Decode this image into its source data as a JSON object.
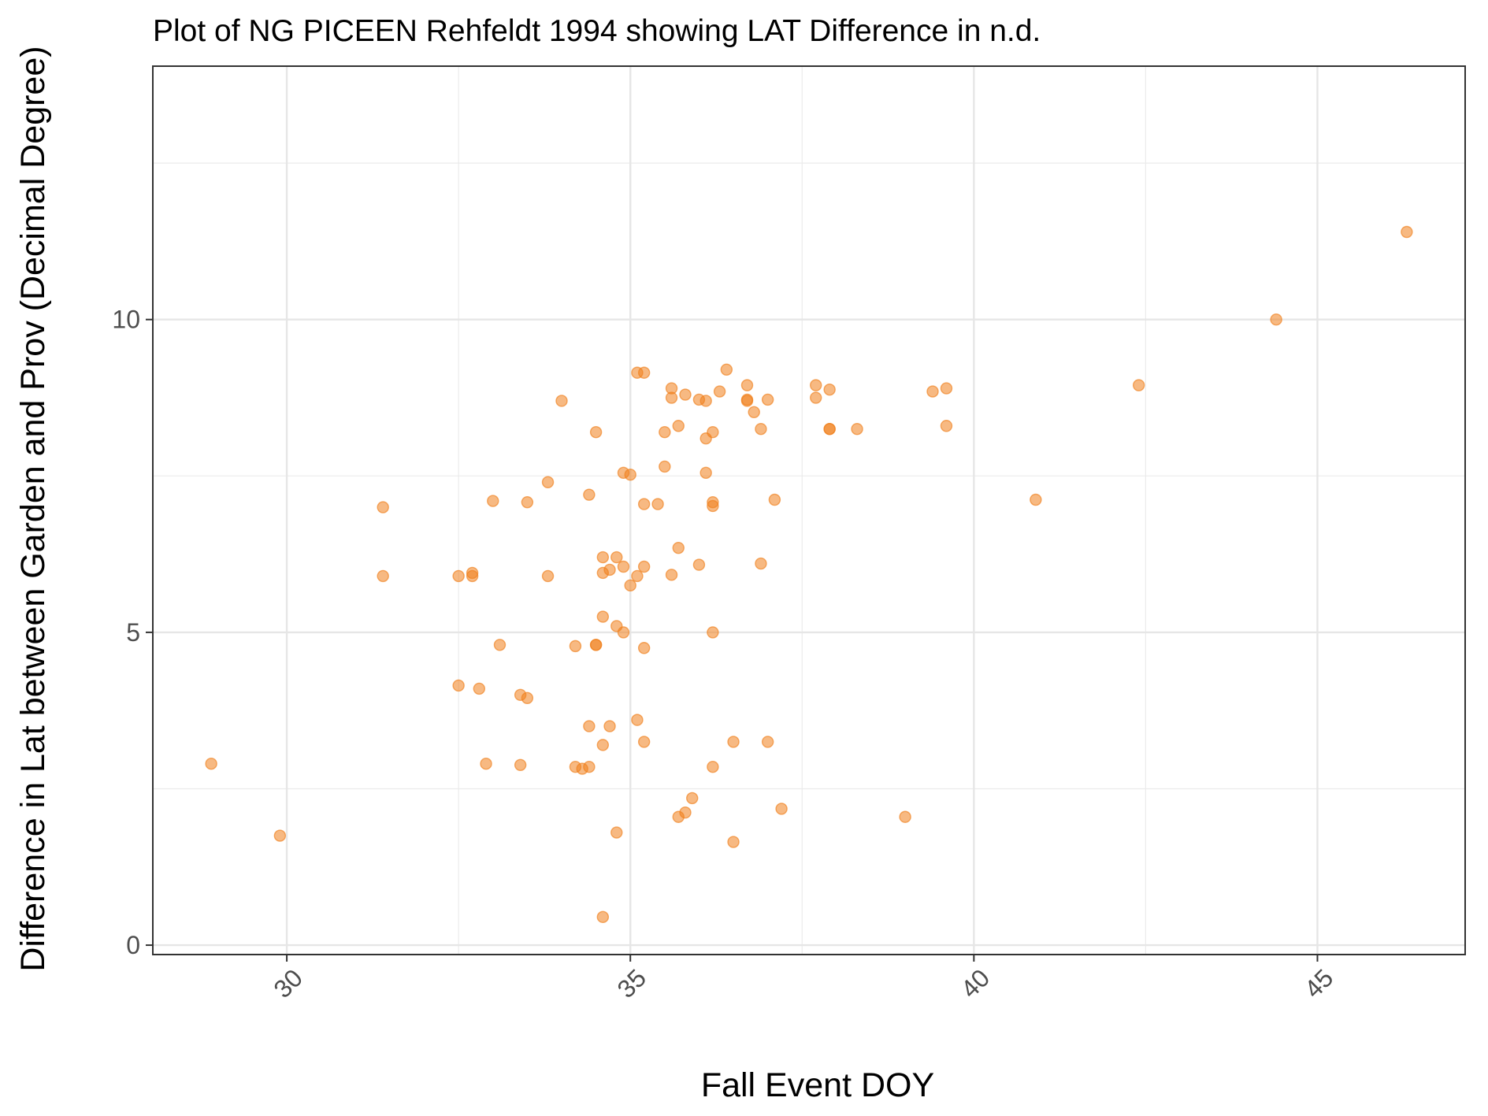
{
  "chart_data": {
    "type": "scatter",
    "title": "Plot of NG PICEEN Rehfeldt 1994 showing LAT Difference in n.d.",
    "xlabel": "Fall Event DOY",
    "ylabel": "Difference in Lat between Garden and Prov (Decimal Degree)",
    "xlim": [
      28.05,
      47.15
    ],
    "ylim": [
      -0.15,
      14.05
    ],
    "x_ticks": [
      30,
      35,
      40,
      45
    ],
    "x_tick_labels": [
      "30",
      "35",
      "40",
      "45"
    ],
    "y_ticks": [
      0,
      5,
      10
    ],
    "y_tick_labels": [
      "0",
      "5",
      "10"
    ],
    "x_minor_gridlines": [
      32.5,
      37.5,
      42.5
    ],
    "y_minor_gridlines": [
      2.5,
      7.5,
      12.5
    ],
    "grid": true,
    "legend": "none",
    "point_color": "#f07f1b",
    "point_opacity": 0.55,
    "x": [
      28.9,
      29.9,
      31.4,
      31.4,
      32.5,
      32.5,
      32.7,
      32.7,
      32.8,
      32.9,
      33.0,
      33.1,
      33.4,
      33.4,
      33.5,
      33.5,
      33.8,
      33.8,
      34.0,
      34.2,
      34.2,
      34.3,
      34.4,
      34.4,
      34.4,
      34.5,
      34.5,
      34.5,
      34.6,
      34.6,
      34.6,
      34.6,
      34.6,
      34.7,
      34.7,
      34.8,
      34.8,
      34.8,
      34.9,
      34.9,
      34.9,
      35.0,
      35.0,
      35.1,
      35.1,
      35.1,
      35.2,
      35.2,
      35.2,
      35.2,
      35.2,
      35.4,
      35.5,
      35.5,
      35.6,
      35.6,
      35.6,
      35.7,
      35.7,
      35.7,
      35.8,
      35.8,
      35.9,
      36.0,
      36.0,
      36.1,
      36.1,
      36.1,
      36.2,
      36.2,
      36.2,
      36.2,
      36.2,
      36.3,
      36.4,
      36.5,
      36.5,
      36.7,
      36.7,
      36.7,
      36.8,
      36.9,
      36.9,
      37.0,
      37.0,
      37.1,
      37.2,
      37.7,
      37.7,
      37.9,
      37.9,
      37.9,
      38.3,
      39.0,
      39.4,
      39.6,
      39.6,
      40.9,
      42.4,
      44.4,
      46.3
    ],
    "y": [
      2.9,
      1.75,
      7.0,
      5.9,
      5.9,
      4.15,
      5.9,
      5.95,
      4.1,
      2.9,
      7.1,
      4.8,
      4.0,
      2.88,
      7.08,
      3.95,
      7.4,
      5.9,
      8.7,
      4.78,
      2.85,
      2.82,
      7.2,
      3.5,
      2.85,
      8.2,
      4.8,
      4.8,
      6.2,
      5.95,
      5.25,
      3.2,
      0.45,
      6.0,
      3.5,
      6.2,
      5.1,
      1.8,
      7.55,
      6.05,
      5.0,
      7.52,
      5.75,
      9.15,
      5.9,
      3.6,
      9.15,
      7.05,
      6.05,
      4.75,
      3.25,
      7.05,
      8.2,
      7.65,
      8.9,
      8.75,
      5.92,
      8.3,
      6.35,
      2.05,
      8.8,
      2.12,
      2.35,
      8.72,
      6.08,
      8.7,
      8.1,
      7.55,
      8.2,
      7.08,
      7.02,
      5.0,
      2.85,
      8.85,
      9.2,
      3.25,
      1.65,
      8.95,
      8.72,
      8.7,
      8.52,
      8.25,
      6.1,
      8.72,
      3.25,
      7.12,
      2.18,
      8.95,
      8.75,
      8.88,
      8.25,
      8.25,
      8.25,
      2.05,
      8.85,
      8.9,
      8.3,
      7.12,
      8.95,
      10.0,
      11.4
    ]
  }
}
